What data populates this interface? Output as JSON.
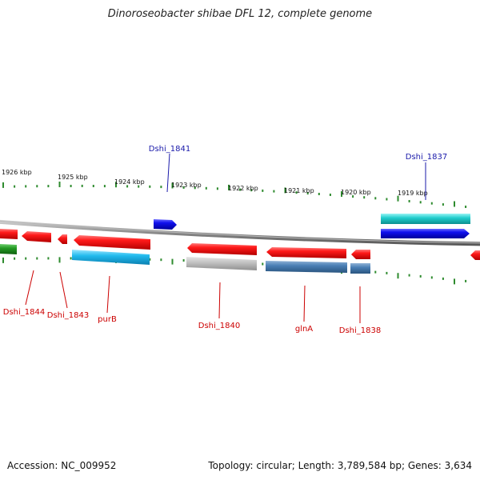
{
  "title": "Dinoroseobacter shibae DFL 12, complete genome",
  "footer": {
    "accession": "Accession: NC_009952",
    "summary": "Topology: circular; Length: 3,789,584 bp; Genes: 3,634"
  },
  "colors": {
    "backbone": "#8a8a8a",
    "ticks": "#2e8b2e",
    "label_forward": "#1a1aaa",
    "label_reverse": "#cc0000"
  },
  "kbp_ticks": [
    "1926 kbp",
    "1925 kbp",
    "1924 kbp",
    "1923 kbp",
    "1922 kbp",
    "1921 kbp",
    "1920 kbp",
    "1919 kbp"
  ],
  "gene_labels": [
    {
      "id": "dshi-1841",
      "text": "Dshi_1841",
      "strand": "forward"
    },
    {
      "id": "dshi-1837",
      "text": "Dshi_1837",
      "strand": "forward"
    },
    {
      "id": "dshi-1844",
      "text": "Dshi_1844",
      "strand": "reverse"
    },
    {
      "id": "dshi-1843",
      "text": "Dshi_1843",
      "strand": "reverse"
    },
    {
      "id": "purb",
      "text": "purB",
      "strand": "reverse"
    },
    {
      "id": "dshi-1840",
      "text": "Dshi_1840",
      "strand": "reverse"
    },
    {
      "id": "glna",
      "text": "glnA",
      "strand": "reverse"
    },
    {
      "id": "dshi-1838",
      "text": "Dshi_1838",
      "strand": "reverse"
    }
  ]
}
